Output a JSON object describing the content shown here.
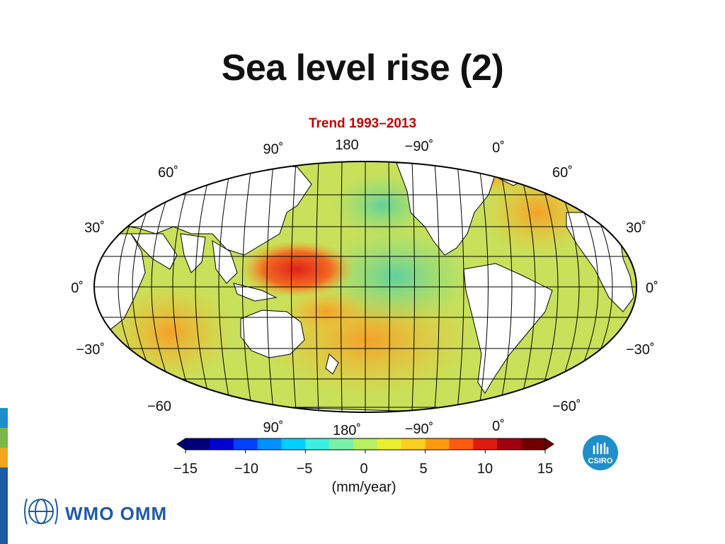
{
  "slide": {
    "title": "Sea level rise (2)",
    "subtitle": "Trend 1993–2013"
  },
  "map": {
    "top_lon_labels": [
      "90˚",
      "180",
      "−90˚",
      "0˚"
    ],
    "bottom_lon_labels": [
      "90˚",
      "180˚",
      "−90˚",
      "0˚"
    ],
    "left_lat_labels": [
      "60˚",
      "30˚",
      "0˚",
      "−30˚",
      "−60"
    ],
    "right_lat_labels": [
      "60˚",
      "30˚",
      "0˚",
      "−30˚",
      "−60˚"
    ],
    "colors": {
      "ocean_base": "#c8e05a",
      "land": "#ffffff",
      "high_anomaly": "#e0221a",
      "warm": "#f4a82a",
      "cool": "#6fd49a"
    }
  },
  "colorbar": {
    "ticks": [
      "−15",
      "−10",
      "−5",
      "0",
      "5",
      "10",
      "15"
    ],
    "unit_label": "(mm/year)",
    "min": -15,
    "max": 15,
    "colors": [
      "#00007a",
      "#0000d0",
      "#0040ff",
      "#0090ff",
      "#00d0ff",
      "#3ef0e0",
      "#7af0a8",
      "#b8f060",
      "#e8f030",
      "#ffd020",
      "#ff9a10",
      "#ff5a10",
      "#e01a10",
      "#a00010",
      "#700000"
    ]
  },
  "branding": {
    "wmo_text": "WMO OMM",
    "csiro_text": "CSIRO"
  }
}
